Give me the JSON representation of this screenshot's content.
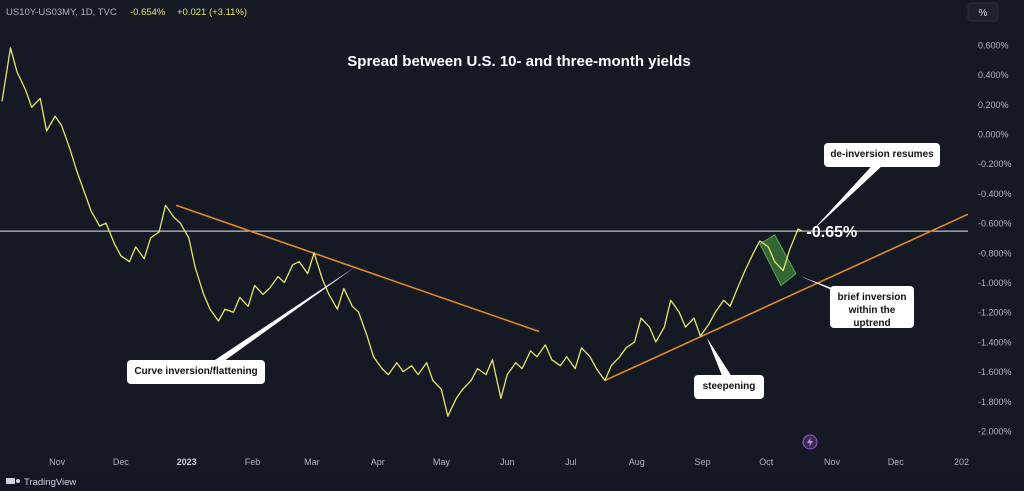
{
  "header": {
    "symbol_text": "US10Y-US03MY, 1D, TVC",
    "last_value": "-0.654%",
    "change": "+0.021 (+3.11%)",
    "unit_button": "%"
  },
  "footer": {
    "brand": "TradingView"
  },
  "colors": {
    "background": "#151924",
    "series": "#e8e46a",
    "trendline": "#e08a2a",
    "level_line": "#e6e6e6",
    "box": "#3f7f3a",
    "axis_text": "#b2b5be"
  },
  "chart_data": {
    "type": "line",
    "title": "Spread between U.S. 10- and three-month yields",
    "x_ticks": [
      "Nov",
      "Dec",
      "2023",
      "Feb",
      "Mar",
      "Apr",
      "May",
      "Jun",
      "Jul",
      "Aug",
      "Sep",
      "Oct",
      "Nov",
      "Dec",
      "202"
    ],
    "y_ticks": [
      "0.600%",
      "0.400%",
      "0.200%",
      "0.000%",
      "-0.200%",
      "-0.400%",
      "-0.600%",
      "-0.800%",
      "-1.000%",
      "-1.200%",
      "-1.400%",
      "-1.600%",
      "-1.800%",
      "-2.000%"
    ],
    "ylim": [
      -2.08,
      0.68
    ],
    "xlim": [
      "2022-10-06",
      "2024-01-05"
    ],
    "series": [
      {
        "dates": [
          "2022-10-06",
          "2022-10-10",
          "2022-10-13",
          "2022-10-17",
          "2022-10-20",
          "2022-10-24",
          "2022-10-27",
          "2022-10-31",
          "2022-11-03",
          "2022-11-07",
          "2022-11-10",
          "2022-11-14",
          "2022-11-17",
          "2022-11-21",
          "2022-11-24",
          "2022-11-28",
          "2022-12-01",
          "2022-12-05",
          "2022-12-08",
          "2022-12-12",
          "2022-12-15",
          "2022-12-19",
          "2022-12-22",
          "2022-12-26",
          "2022-12-29",
          "2023-01-02",
          "2023-01-05",
          "2023-01-09",
          "2023-01-12",
          "2023-01-16",
          "2023-01-19",
          "2023-01-23",
          "2023-01-26",
          "2023-01-30",
          "2023-02-02",
          "2023-02-06",
          "2023-02-09",
          "2023-02-13",
          "2023-02-16",
          "2023-02-20",
          "2023-02-23",
          "2023-02-27",
          "2023-03-02",
          "2023-03-06",
          "2023-03-09",
          "2023-03-13",
          "2023-03-16",
          "2023-03-20",
          "2023-03-23",
          "2023-03-27",
          "2023-03-30",
          "2023-04-03",
          "2023-04-06",
          "2023-04-10",
          "2023-04-13",
          "2023-04-17",
          "2023-04-20",
          "2023-04-24",
          "2023-04-27",
          "2023-05-01",
          "2023-05-04",
          "2023-05-08",
          "2023-05-11",
          "2023-05-15",
          "2023-05-18",
          "2023-05-22",
          "2023-05-25",
          "2023-05-29",
          "2023-06-01",
          "2023-06-05",
          "2023-06-08",
          "2023-06-12",
          "2023-06-15",
          "2023-06-19",
          "2023-06-22",
          "2023-06-26",
          "2023-06-29",
          "2023-07-03",
          "2023-07-06",
          "2023-07-10",
          "2023-07-13",
          "2023-07-17",
          "2023-07-20",
          "2023-07-24",
          "2023-07-27",
          "2023-07-31",
          "2023-08-03",
          "2023-08-07",
          "2023-08-10",
          "2023-08-14",
          "2023-08-17",
          "2023-08-21",
          "2023-08-24",
          "2023-08-28",
          "2023-08-31",
          "2023-09-04",
          "2023-09-07",
          "2023-09-11",
          "2023-09-14",
          "2023-09-18",
          "2023-09-21",
          "2023-09-25",
          "2023-09-28",
          "2023-10-02",
          "2023-10-05",
          "2023-10-09",
          "2023-10-12",
          "2023-10-16",
          "2023-10-18"
        ],
        "values": [
          0.22,
          0.58,
          0.42,
          0.3,
          0.18,
          0.24,
          0.02,
          0.12,
          0.06,
          -0.1,
          -0.24,
          -0.4,
          -0.52,
          -0.62,
          -0.6,
          -0.74,
          -0.82,
          -0.86,
          -0.76,
          -0.84,
          -0.7,
          -0.66,
          -0.48,
          -0.56,
          -0.6,
          -0.7,
          -0.9,
          -1.08,
          -1.18,
          -1.26,
          -1.18,
          -1.2,
          -1.1,
          -1.16,
          -1.02,
          -1.08,
          -1.04,
          -0.96,
          -1.0,
          -0.88,
          -0.86,
          -0.94,
          -0.8,
          -0.98,
          -1.08,
          -1.18,
          -1.04,
          -1.16,
          -1.2,
          -1.36,
          -1.5,
          -1.58,
          -1.62,
          -1.54,
          -1.6,
          -1.56,
          -1.62,
          -1.54,
          -1.66,
          -1.72,
          -1.9,
          -1.78,
          -1.72,
          -1.66,
          -1.58,
          -1.62,
          -1.52,
          -1.78,
          -1.62,
          -1.54,
          -1.58,
          -1.46,
          -1.5,
          -1.42,
          -1.52,
          -1.56,
          -1.5,
          -1.58,
          -1.44,
          -1.5,
          -1.58,
          -1.66,
          -1.56,
          -1.5,
          -1.44,
          -1.4,
          -1.24,
          -1.3,
          -1.4,
          -1.3,
          -1.12,
          -1.2,
          -1.3,
          -1.24,
          -1.36,
          -1.28,
          -1.2,
          -1.12,
          -1.16,
          -1.02,
          -0.92,
          -0.8,
          -0.72,
          -0.76,
          -0.86,
          -0.92,
          -0.78,
          -0.64,
          -0.654
        ]
      }
    ],
    "level_label": "-0.65%",
    "annotations": [
      {
        "text": "Curve inversion/flattening"
      },
      {
        "text": "steepening"
      },
      {
        "text": "de-inversion resumes"
      },
      {
        "text_lines": [
          "brief inversion",
          "within the",
          "uptrend"
        ]
      }
    ]
  }
}
